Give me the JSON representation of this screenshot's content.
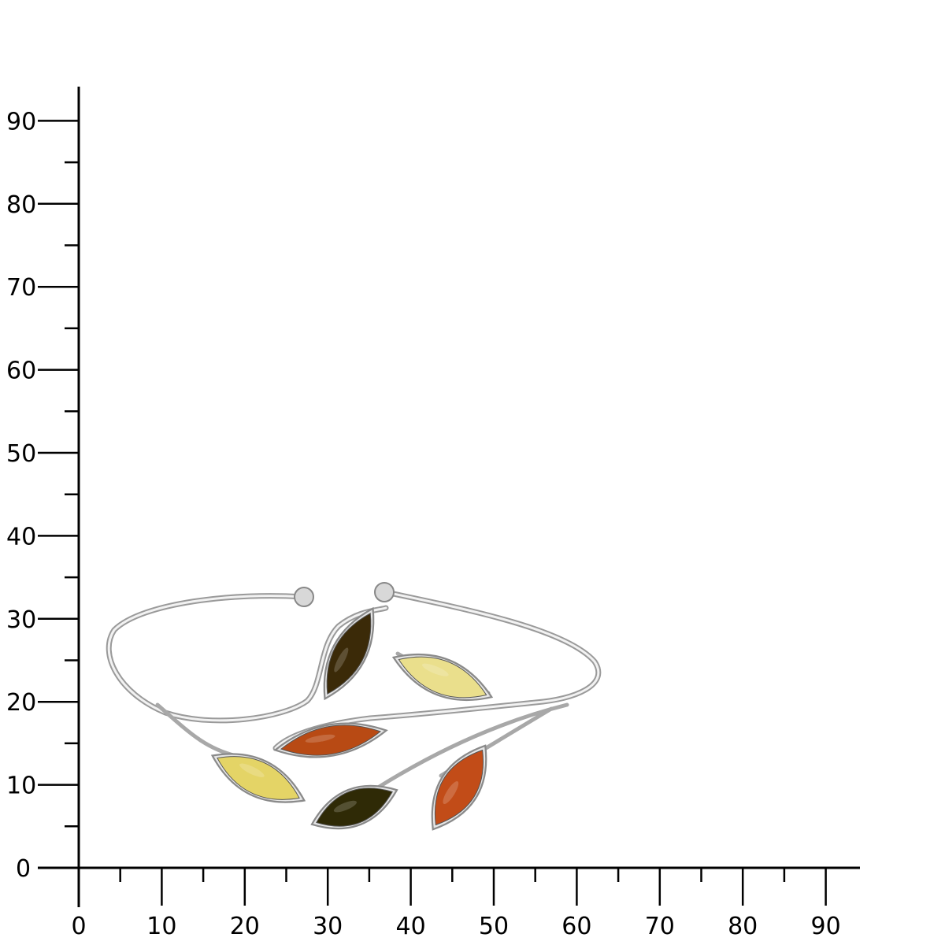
{
  "scale": {
    "x_tick_labels": [
      "0",
      "10",
      "20",
      "30",
      "40",
      "50",
      "60",
      "70",
      "80",
      "90"
    ],
    "y_tick_labels": [
      "0",
      "10",
      "20",
      "30",
      "40",
      "50",
      "60",
      "70",
      "80",
      "90"
    ],
    "x_range": [
      0,
      94
    ],
    "y_range": [
      0,
      94
    ],
    "axis_color": "#000000"
  },
  "product": {
    "stone_colors": [
      "#3b2a08",
      "#eadf8c",
      "#b84a14",
      "#e4d466",
      "#2f2a06",
      "#c24c18"
    ],
    "metal_color": "#c8c8c8"
  }
}
